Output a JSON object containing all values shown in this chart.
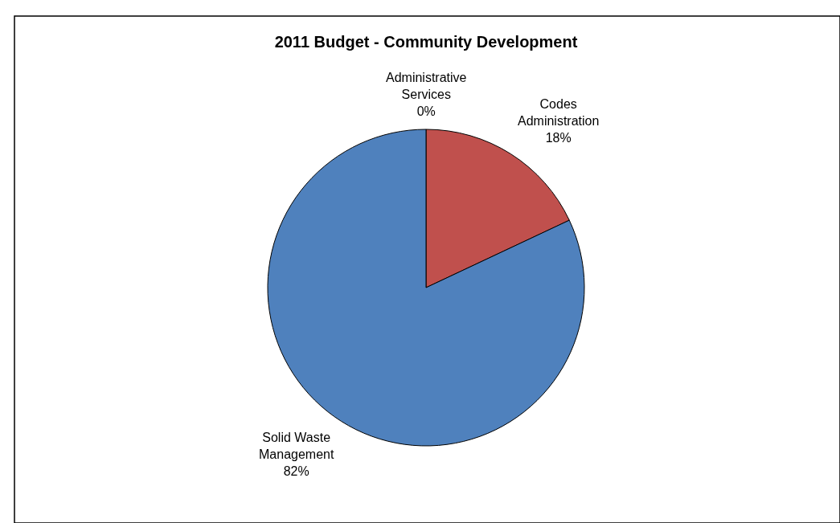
{
  "chart_data": {
    "type": "pie",
    "title": "2011 Budget - Community Development",
    "categories": [
      "Administrative Services",
      "Codes Administration",
      "Solid Waste Management"
    ],
    "values": [
      0,
      18,
      82
    ],
    "colors": [
      "#9bbb59",
      "#c0504d",
      "#4f81bd"
    ],
    "value_labels": [
      "0%",
      "18%",
      "82%"
    ]
  }
}
